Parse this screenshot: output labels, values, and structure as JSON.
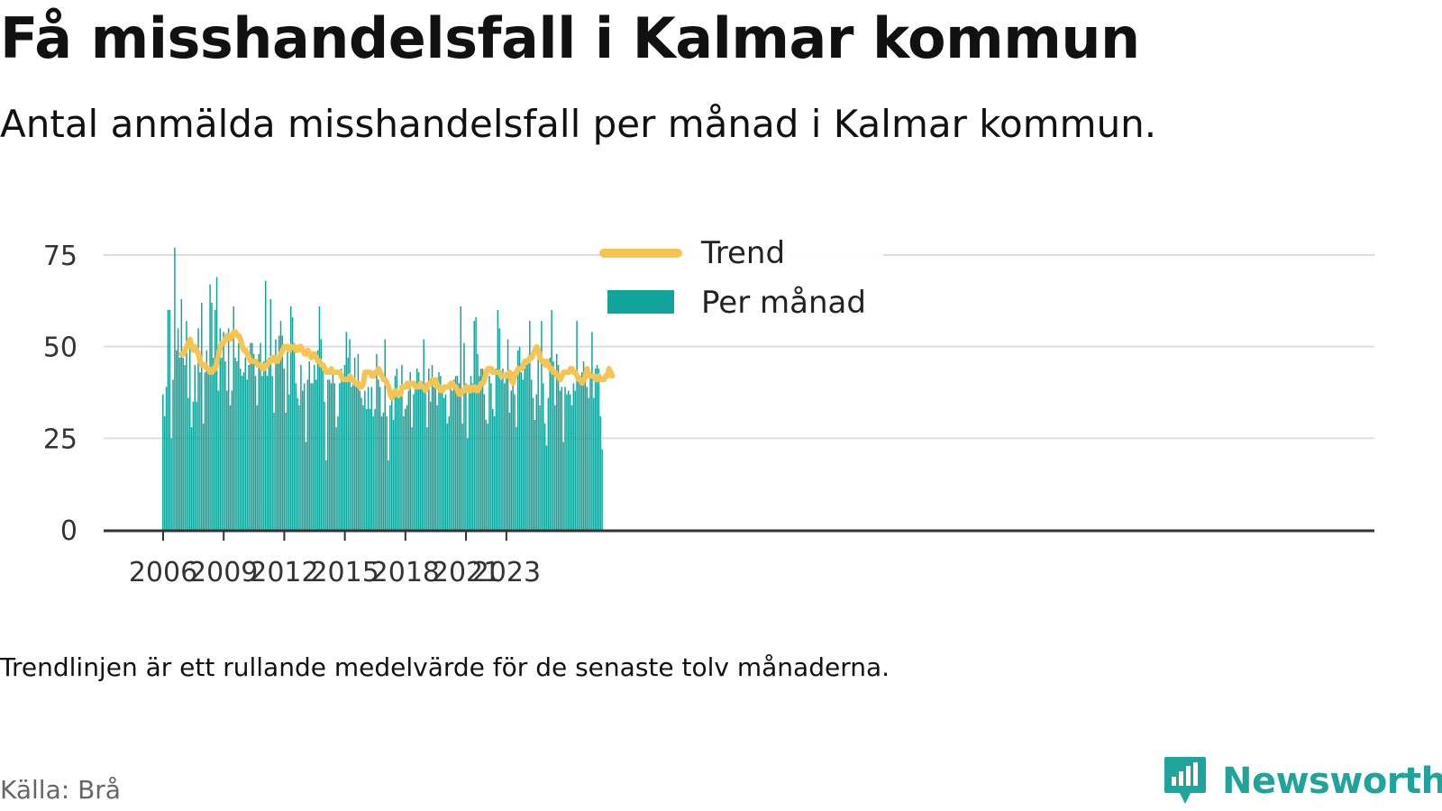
{
  "title": "Få misshandelsfall i Kalmar kommun",
  "subtitle": "Antal anmälda misshandelsfall per månad i Kalmar kommun.",
  "note": "Trendlinjen är ett rullande medelvärde för de senaste tolv månaderna.",
  "source": "Källa: Brå",
  "brand": {
    "name": "Newsworthy",
    "logo_icon": "newsworthy-chart-bubble-icon"
  },
  "colors": {
    "bar": "#12a39a",
    "trend": "#f6c453",
    "grid": "#dddddd",
    "axis": "#333333"
  },
  "chart_data": {
    "type": "bar",
    "x_start": "2006-01",
    "x_step": "month",
    "yticks": [
      0,
      25,
      50,
      75
    ],
    "ylim": [
      0,
      80
    ],
    "xticks": [
      "2006",
      "2009",
      "2012",
      "2015",
      "2018",
      "2021",
      "2023"
    ],
    "legend_position": "top-center",
    "grid": true,
    "series": [
      {
        "name": "Per månad",
        "type": "bar",
        "values": [
          37,
          31,
          39,
          60,
          60,
          25,
          41,
          77,
          49,
          55,
          47,
          63,
          47,
          45,
          57,
          36,
          52,
          28,
          35,
          45,
          35,
          55,
          43,
          62,
          29,
          43,
          49,
          44,
          67,
          62,
          47,
          60,
          69,
          38,
          55,
          47,
          54,
          46,
          38,
          55,
          34,
          38,
          61,
          47,
          46,
          51,
          44,
          42,
          43,
          47,
          41,
          45,
          51,
          51,
          48,
          42,
          34,
          48,
          51,
          42,
          46,
          68,
          42,
          47,
          63,
          42,
          32,
          52,
          47,
          53,
          57,
          53,
          44,
          32,
          50,
          37,
          61,
          58,
          51,
          40,
          36,
          34,
          45,
          38,
          40,
          24,
          41,
          46,
          40,
          40,
          45,
          41,
          49,
          61,
          52,
          45,
          35,
          19,
          41,
          41,
          40,
          44,
          40,
          28,
          31,
          40,
          44,
          42,
          45,
          54,
          47,
          52,
          39,
          41,
          47,
          39,
          48,
          38,
          36,
          34,
          38,
          33,
          39,
          33,
          39,
          31,
          33,
          48,
          41,
          39,
          31,
          32,
          52,
          31,
          19,
          34,
          38,
          30,
          42,
          44,
          36,
          39,
          45,
          31,
          33,
          34,
          38,
          43,
          28,
          37,
          39,
          44,
          43,
          40,
          40,
          52,
          40,
          28,
          44,
          35,
          45,
          39,
          39,
          34,
          43,
          42,
          38,
          36,
          37,
          29,
          31,
          40,
          38,
          41,
          42,
          42,
          40,
          61,
          29,
          51,
          40,
          25,
          39,
          42,
          40,
          57,
          58,
          48,
          42,
          44,
          44,
          37,
          30,
          29,
          42,
          40,
          33,
          31,
          44,
          60,
          55,
          41,
          44,
          40,
          43,
          52,
          32,
          38,
          43,
          37,
          28,
          49,
          50,
          43,
          41,
          44,
          45,
          46,
          57,
          41,
          36,
          30,
          37,
          48,
          34,
          57,
          40,
          29,
          23,
          36,
          47,
          60,
          46,
          34,
          48,
          45,
          38,
          39,
          24,
          39,
          37,
          38,
          37,
          34,
          40,
          38,
          57,
          41,
          42,
          43,
          46,
          42,
          39,
          36,
          43,
          54,
          36,
          44,
          45,
          44,
          31,
          22
        ]
      },
      {
        "name": "Trend",
        "type": "line",
        "start_index": 11,
        "values": [
          48,
          48,
          49,
          50,
          51,
          52,
          50,
          49,
          50,
          49,
          48,
          46,
          45,
          45,
          45,
          44,
          44,
          43,
          43,
          44,
          44,
          46,
          48,
          50,
          51,
          51,
          52,
          53,
          53,
          52,
          53,
          54,
          54,
          53,
          53,
          52,
          50,
          49,
          49,
          48,
          47,
          46,
          46,
          46,
          46,
          45,
          45,
          45,
          44,
          44,
          45,
          45,
          46,
          46,
          47,
          47,
          46,
          46,
          47,
          48,
          49,
          50,
          50,
          50,
          49,
          50,
          50,
          50,
          49,
          49,
          50,
          50,
          49,
          48,
          48,
          49,
          48,
          47,
          48,
          48,
          47,
          46,
          46,
          45,
          45,
          44,
          43,
          43,
          43,
          44,
          43,
          43,
          43,
          43,
          43,
          42,
          41,
          41,
          41,
          41,
          42,
          41,
          41,
          40,
          40,
          40,
          39,
          39,
          40,
          43,
          43,
          43,
          43,
          42,
          42,
          43,
          43,
          44,
          43,
          42,
          41,
          41,
          40,
          39,
          37,
          36,
          37,
          38,
          37,
          37,
          37,
          39,
          39,
          39,
          40,
          39,
          40,
          40,
          40,
          39,
          39,
          39,
          40,
          39,
          39,
          38,
          39,
          40,
          40,
          41,
          40,
          41,
          39,
          39,
          38,
          38,
          39,
          39,
          39,
          39,
          40,
          40,
          39,
          39,
          38,
          37,
          37,
          38,
          38,
          39,
          39,
          38,
          38,
          39,
          39,
          38,
          38,
          39,
          40,
          40,
          41,
          43,
          44,
          44,
          44,
          43,
          43,
          43,
          43,
          43,
          42,
          42,
          42,
          42,
          42,
          43,
          41,
          40,
          42,
          43,
          44,
          44,
          44,
          45,
          46,
          46,
          46,
          47,
          47,
          48,
          49,
          50,
          49,
          47,
          46,
          46,
          45,
          46,
          45,
          44,
          44,
          43,
          43,
          42,
          42,
          41,
          42,
          43,
          43,
          43,
          43,
          44,
          44,
          43,
          43,
          42,
          41,
          41,
          40,
          41,
          42,
          44,
          42,
          42,
          42,
          42,
          41,
          41,
          42,
          41,
          41,
          41,
          42,
          42,
          44,
          43,
          42
        ]
      }
    ]
  }
}
